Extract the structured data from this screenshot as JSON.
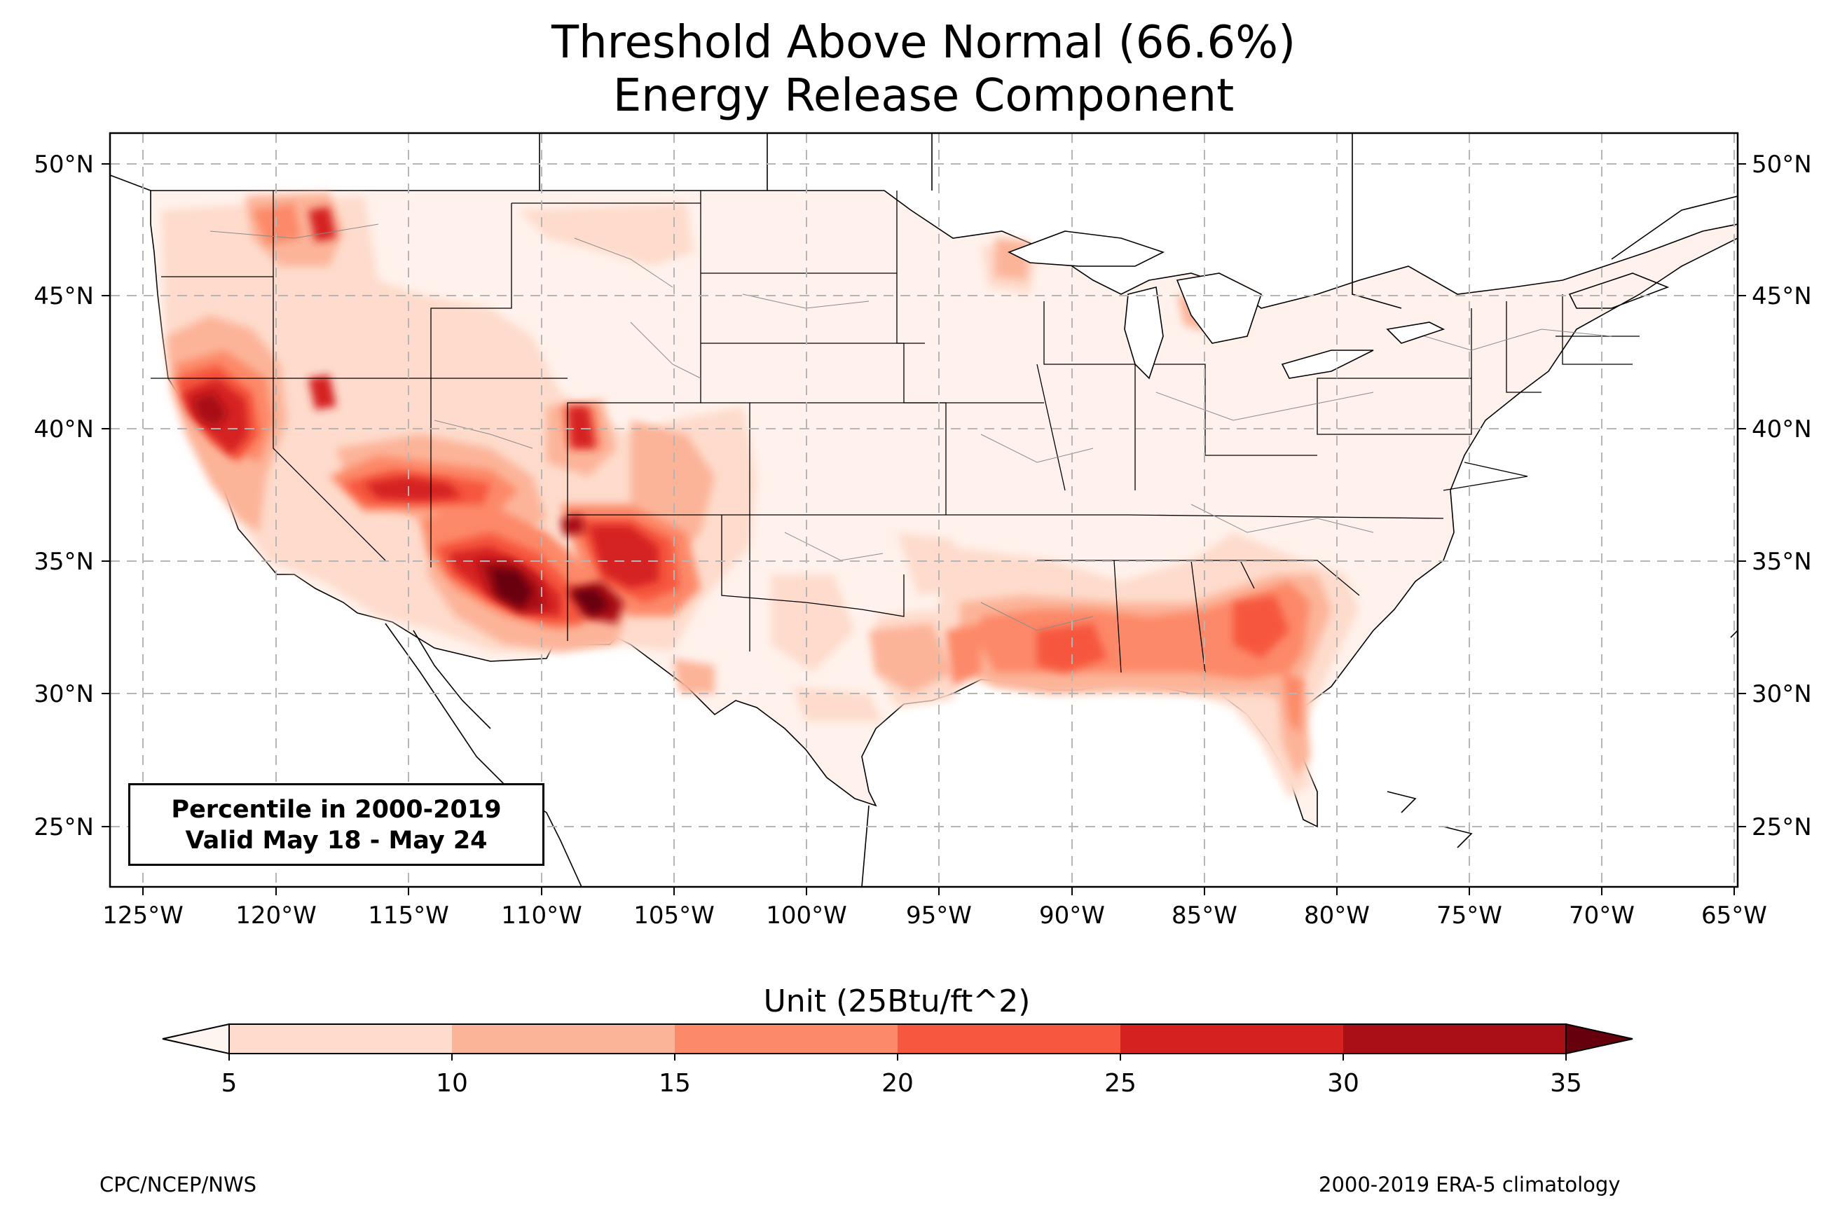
{
  "title_line1": "Threshold Above Normal (66.6%)",
  "title_line2": "Energy Release Component",
  "lat_labels": [
    "50°N",
    "45°N",
    "40°N",
    "35°N",
    "30°N",
    "25°N"
  ],
  "lon_labels": [
    "125°W",
    "120°W",
    "115°W",
    "110°W",
    "105°W",
    "100°W",
    "95°W",
    "90°W",
    "85°W",
    "80°W",
    "75°W",
    "70°W",
    "65°W"
  ],
  "info_box": {
    "line1": "Percentile in 2000-2019",
    "line2": "Valid May 18 - May 24"
  },
  "colorbar": {
    "label": "Unit (25Btu/ft^2)",
    "ticks": [
      "5",
      "10",
      "15",
      "20",
      "25",
      "30",
      "35"
    ],
    "colors": [
      "#fedbcc",
      "#fcb499",
      "#fc8969",
      "#f6573e",
      "#d52221",
      "#a91016"
    ],
    "under_color": "#fff5f0",
    "over_color": "#67000d"
  },
  "footer_left": "CPC/NCEP/NWS",
  "footer_right": "2000-2019 ERA-5 climatology"
}
